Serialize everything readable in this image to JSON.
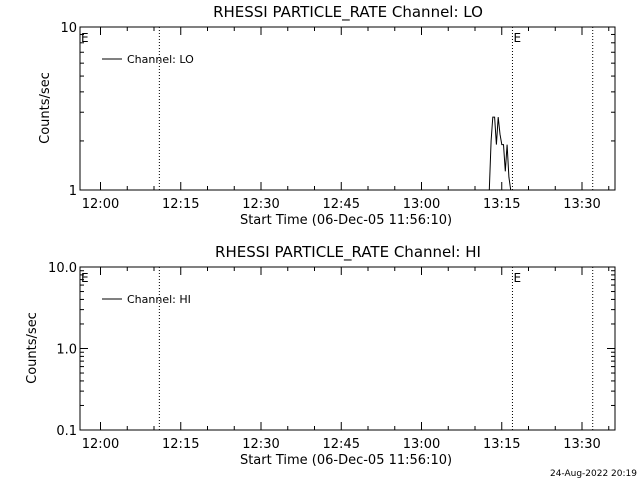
{
  "chart_data": [
    {
      "type": "line",
      "title": "RHESSI PARTICLE_RATE Channel: LO",
      "xlabel": "Start Time (06-Dec-05 11:56:10)",
      "ylabel": "Counts/sec",
      "y_scale": "log",
      "ylim": [
        1,
        10
      ],
      "y_ticks": [
        1,
        10
      ],
      "y_tick_labels": [
        "1",
        "10"
      ],
      "x_unit": "time (HH:MM on 06-Dec-05)",
      "xlim": [
        "11:56:10",
        "13:36:10"
      ],
      "x_ticks": [
        "12:00",
        "12:15",
        "12:30",
        "12:45",
        "13:00",
        "13:15",
        "13:30"
      ],
      "vlines": [
        "12:11",
        "13:17",
        "13:32"
      ],
      "markers": [
        {
          "label": "E",
          "at": "11:56"
        },
        {
          "label": "E",
          "at": "13:17"
        }
      ],
      "grid": false,
      "legend_position": "top-left",
      "series": [
        {
          "name": "Channel: LO",
          "x": [
            "13:12:00",
            "13:12:40",
            "13:13:00",
            "13:13:20",
            "13:13:40",
            "13:14:00",
            "13:14:20",
            "13:14:40",
            "13:15:00",
            "13:15:20",
            "13:15:40",
            "13:16:00",
            "13:16:20",
            "13:16:40",
            "13:17:00"
          ],
          "y": [
            1,
            1,
            2.0,
            2.8,
            2.8,
            1.9,
            2.8,
            2.2,
            1.9,
            1.9,
            1.3,
            1.9,
            1.2,
            1,
            1
          ]
        }
      ]
    },
    {
      "type": "line",
      "title": "RHESSI PARTICLE_RATE Channel: HI",
      "xlabel": "Start Time (06-Dec-05 11:56:10)",
      "ylabel": "Counts/sec",
      "y_scale": "log",
      "ylim": [
        0.1,
        10
      ],
      "y_ticks": [
        0.1,
        1,
        10
      ],
      "y_tick_labels": [
        "0.1",
        "1.0",
        "10.0"
      ],
      "x_unit": "time (HH:MM on 06-Dec-05)",
      "xlim": [
        "11:56:10",
        "13:36:10"
      ],
      "x_ticks": [
        "12:00",
        "12:15",
        "12:30",
        "12:45",
        "13:00",
        "13:15",
        "13:30"
      ],
      "vlines": [
        "12:11",
        "13:17",
        "13:32"
      ],
      "markers": [
        {
          "label": "E",
          "at": "11:56"
        },
        {
          "label": "E",
          "at": "13:17"
        }
      ],
      "grid": false,
      "legend_position": "top-left",
      "series": [
        {
          "name": "Channel: HI",
          "x": [],
          "y": []
        }
      ]
    }
  ],
  "footer": {
    "timestamp": "24-Aug-2022 20:19"
  },
  "colors": {
    "background": "#ffffff",
    "foreground": "#000000"
  }
}
